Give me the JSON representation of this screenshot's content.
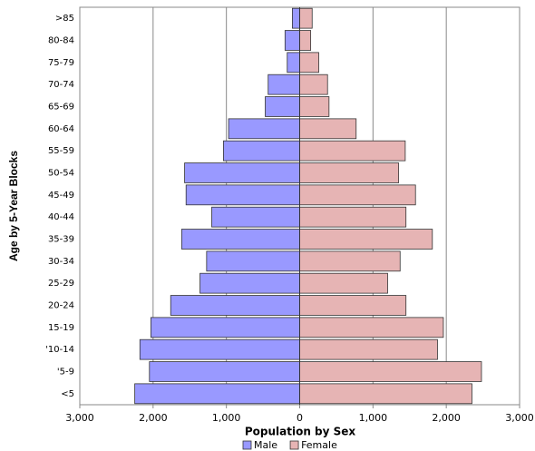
{
  "chart_data": {
    "type": "pyramid",
    "xlabel": "Population by Sex",
    "ylabel": "Age by 5-Year Blocks",
    "categories": [
      "<5",
      "'5-9",
      "'10-14",
      "15-19",
      "20-24",
      "25-29",
      "30-34",
      "35-39",
      "40-44",
      "45-49",
      "50-54",
      "55-59",
      "60-64",
      "65-69",
      "70-74",
      "75-79",
      "80-84",
      ">85"
    ],
    "series": [
      {
        "name": "Male",
        "color": "#9999ff",
        "values": [
          -2250,
          -2050,
          -2180,
          -2030,
          -1760,
          -1360,
          -1270,
          -1610,
          -1200,
          -1550,
          -1570,
          -1040,
          -970,
          -470,
          -430,
          -170,
          -200,
          -100
        ]
      },
      {
        "name": "Female",
        "color": "#e6b4b4",
        "values": [
          2350,
          2480,
          1880,
          1960,
          1450,
          1200,
          1370,
          1810,
          1450,
          1580,
          1350,
          1440,
          770,
          400,
          380,
          260,
          150,
          170
        ]
      }
    ],
    "xlim": [
      -3000,
      3000
    ],
    "xticks": [
      {
        "value": -3000,
        "label": "3,000"
      },
      {
        "value": -2000,
        "label": "2,000"
      },
      {
        "value": -1000,
        "label": "1,000"
      },
      0,
      {
        "value": 1000,
        "label": "1,000"
      },
      {
        "value": 2000,
        "label": "2,000"
      },
      {
        "value": 3000,
        "label": "3,000"
      }
    ],
    "grid": true,
    "legend": "bottom"
  }
}
